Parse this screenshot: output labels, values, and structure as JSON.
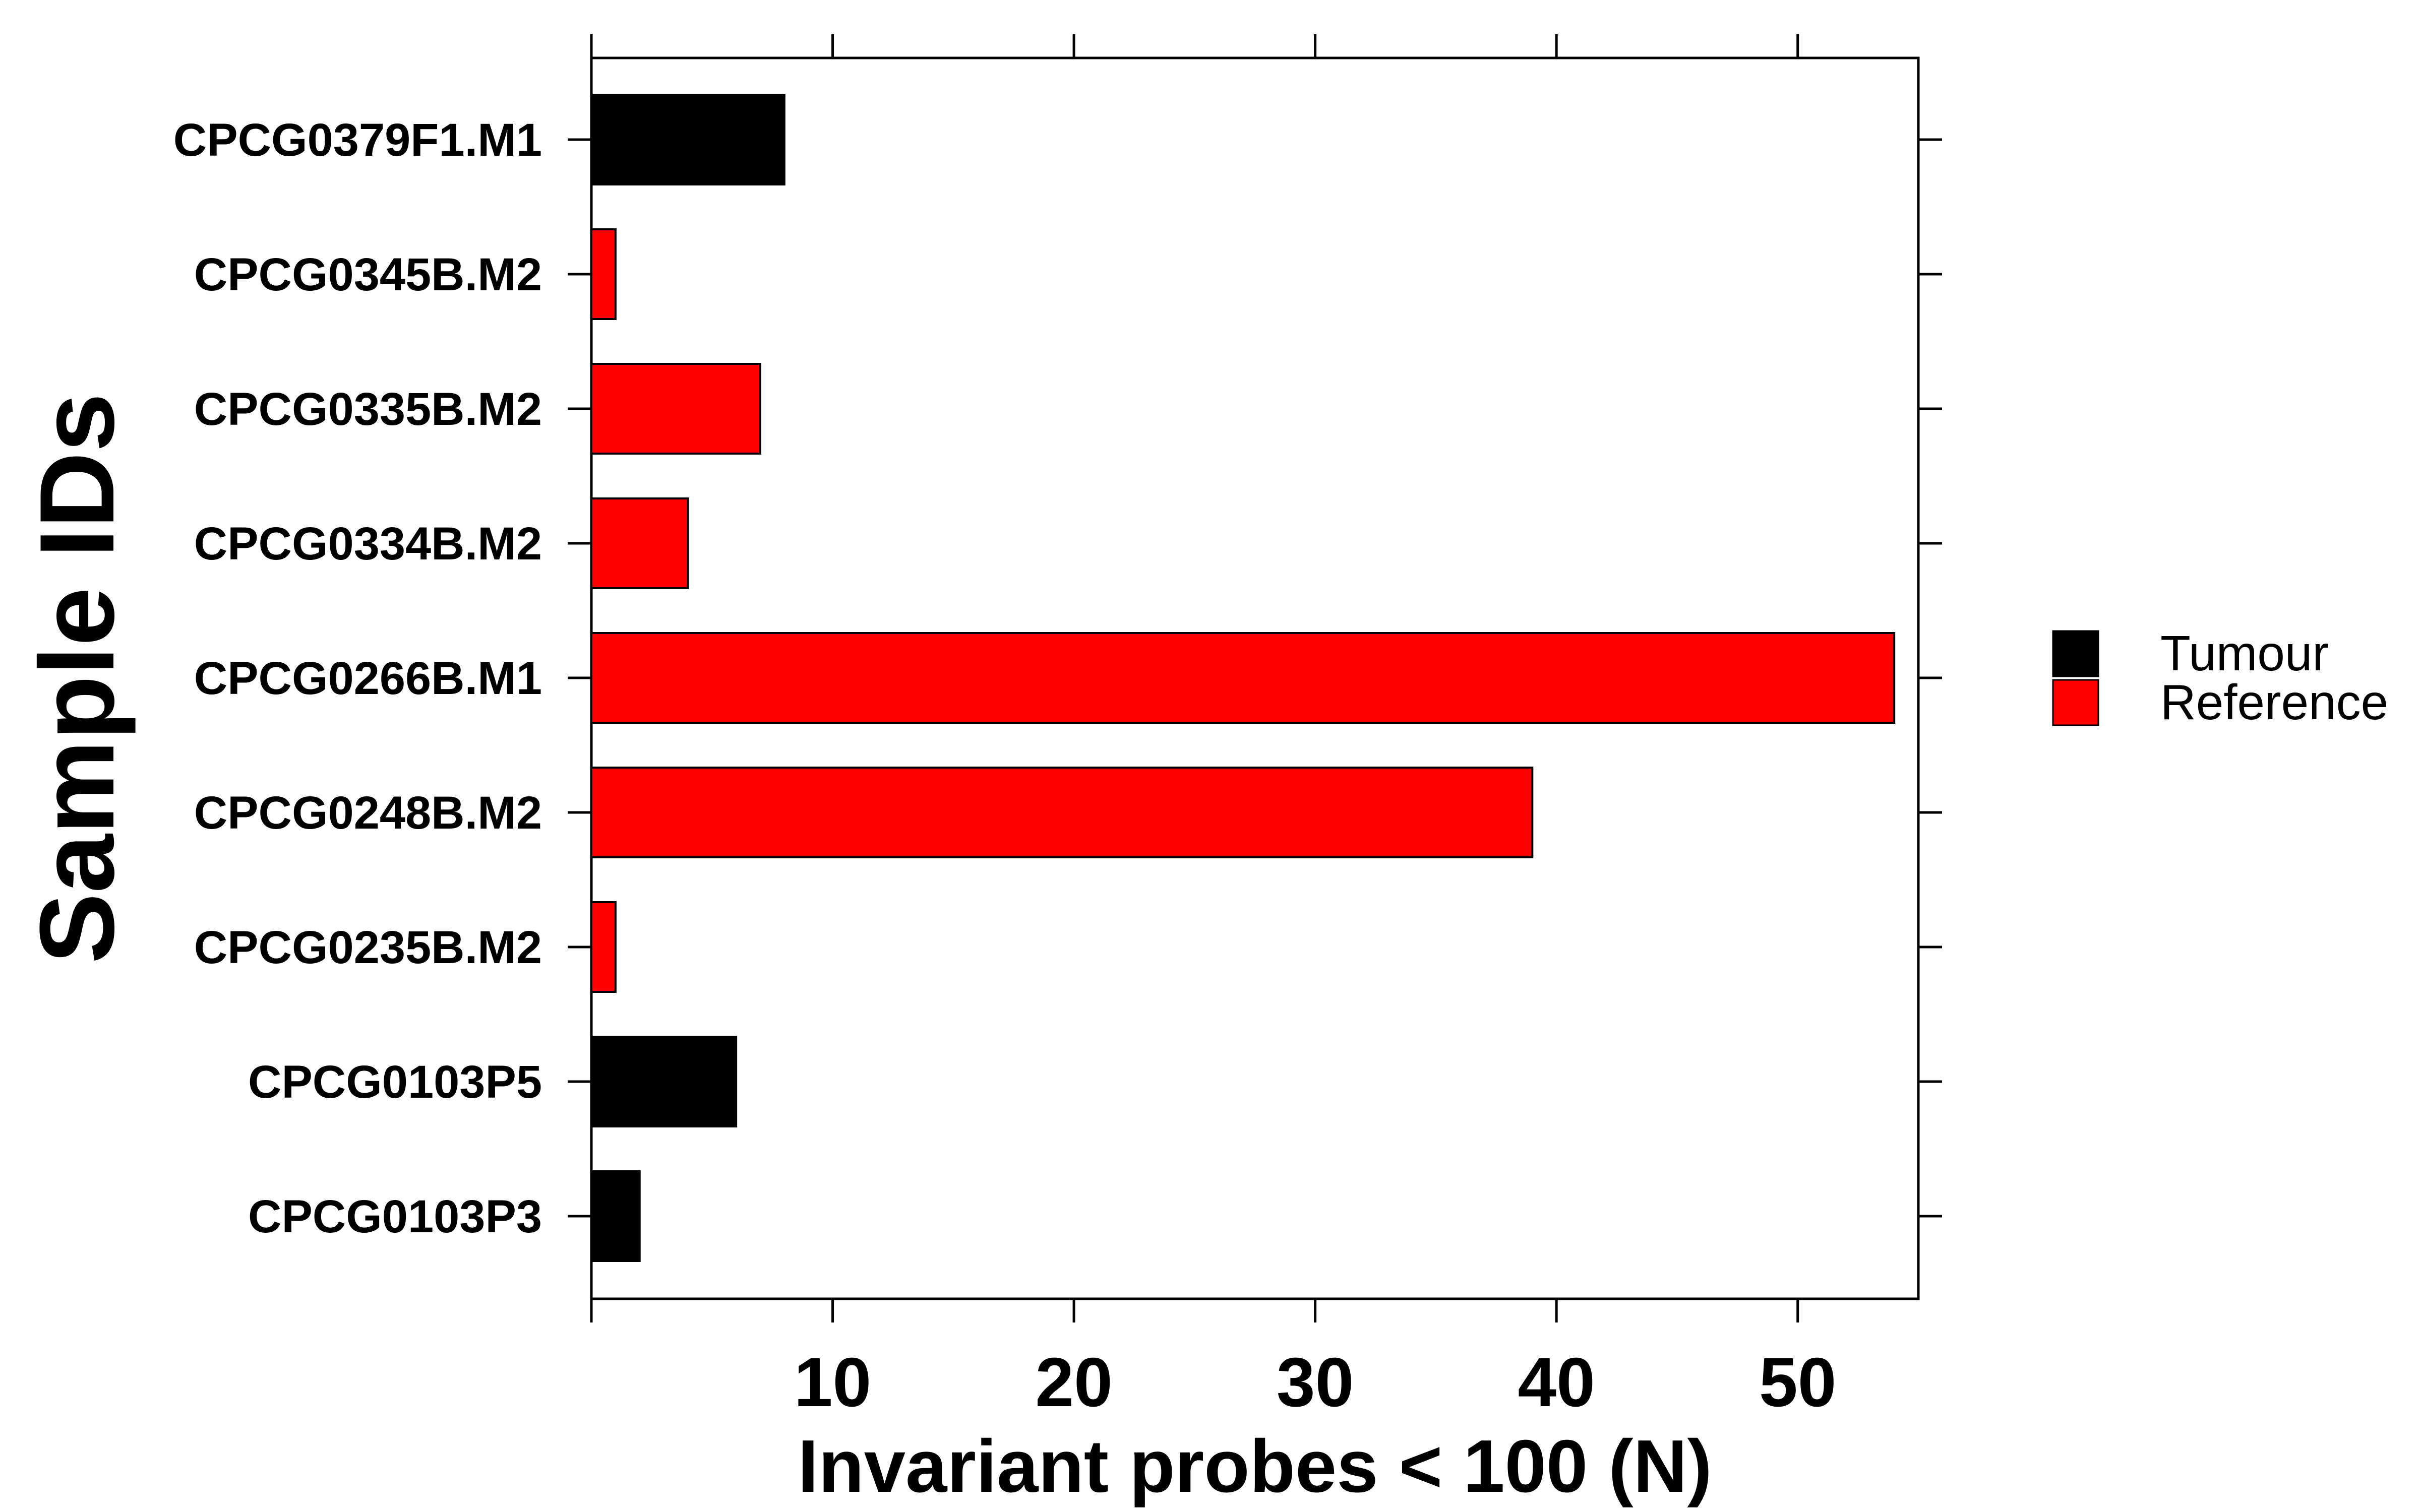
{
  "chart_data": {
    "type": "bar",
    "orientation": "horizontal",
    "title": "",
    "xlabel": "Invariant probes < 100 (N)",
    "ylabel": "Sample IDs",
    "xlim": [
      0,
      55
    ],
    "xticks": [
      10,
      20,
      30,
      40,
      50
    ],
    "categories": [
      "CPCG0379F1.M1",
      "CPCG0345B.M2",
      "CPCG0335B.M2",
      "CPCG0334B.M2",
      "CPCG0266B.M1",
      "CPCG0248B.M2",
      "CPCG0235B.M2",
      "CPCG0103P5",
      "CPCG0103P3"
    ],
    "values": [
      8,
      1,
      7,
      4,
      54,
      39,
      1,
      6,
      2
    ],
    "groups": [
      "Tumour",
      "Reference",
      "Reference",
      "Reference",
      "Reference",
      "Reference",
      "Reference",
      "Tumour",
      "Tumour"
    ],
    "legend": {
      "position": "right",
      "entries": [
        {
          "label": "Tumour",
          "color": "#000000"
        },
        {
          "label": "Reference",
          "color": "#ff0000"
        }
      ]
    },
    "grid": false
  }
}
